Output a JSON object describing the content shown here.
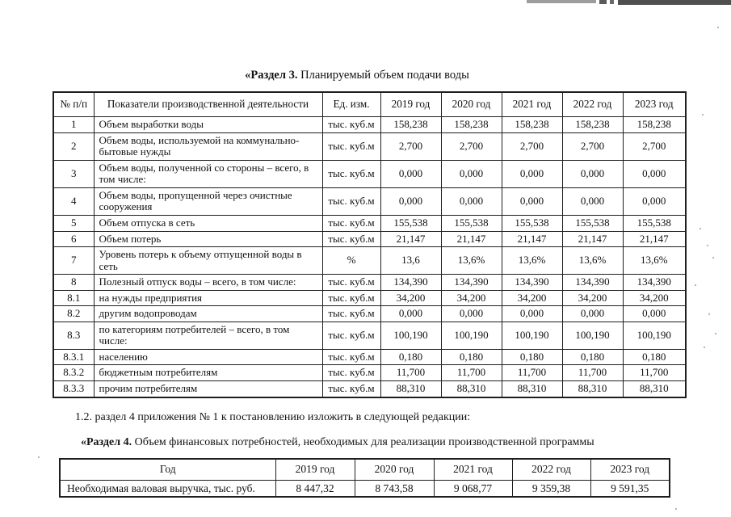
{
  "section3": {
    "title_bold": "«Раздел 3.",
    "title_rest": " Планируемый объем подачи воды"
  },
  "table1": {
    "headers": [
      "№ п/п",
      "Показатели производственной деятельности",
      "Ед. изм.",
      "2019 год",
      "2020 год",
      "2021 год",
      "2022 год",
      "2023 год"
    ],
    "rows": [
      {
        "num": "1",
        "indicator": "Объем выработки воды",
        "unit": "тыс. куб.м",
        "values": [
          "158,238",
          "158,238",
          "158,238",
          "158,238",
          "158,238"
        ]
      },
      {
        "num": "2",
        "indicator": "Объем воды, используемой на коммунально-бытовые нужды",
        "unit": "тыс. куб.м",
        "values": [
          "2,700",
          "2,700",
          "2,700",
          "2,700",
          "2,700"
        ]
      },
      {
        "num": "3",
        "indicator": "Объем воды, полученной со стороны – всего, в том числе:",
        "unit": "тыс. куб.м",
        "values": [
          "0,000",
          "0,000",
          "0,000",
          "0,000",
          "0,000"
        ]
      },
      {
        "num": "4",
        "indicator": "Объем воды, пропущенной через очистные сооружения",
        "unit": "тыс. куб.м",
        "values": [
          "0,000",
          "0,000",
          "0,000",
          "0,000",
          "0,000"
        ]
      },
      {
        "num": "5",
        "indicator": "Объем отпуска в сеть",
        "unit": "тыс. куб.м",
        "values": [
          "155,538",
          "155,538",
          "155,538",
          "155,538",
          "155,538"
        ]
      },
      {
        "num": "6",
        "indicator": "Объем потерь",
        "unit": "тыс. куб.м",
        "values": [
          "21,147",
          "21,147",
          "21,147",
          "21,147",
          "21,147"
        ]
      },
      {
        "num": "7",
        "indicator": "Уровень потерь к объему отпущенной воды в сеть",
        "unit": "%",
        "values": [
          "13,6",
          "13,6%",
          "13,6%",
          "13,6%",
          "13,6%"
        ]
      },
      {
        "num": "8",
        "indicator": "Полезный отпуск воды – всего, в том числе:",
        "unit": "тыс. куб.м",
        "values": [
          "134,390",
          "134,390",
          "134,390",
          "134,390",
          "134,390"
        ]
      },
      {
        "num": "8.1",
        "indicator": "на нужды предприятия",
        "unit": "тыс. куб.м",
        "values": [
          "34,200",
          "34,200",
          "34,200",
          "34,200",
          "34,200"
        ]
      },
      {
        "num": "8.2",
        "indicator": "другим водопроводам",
        "unit": "тыс. куб.м",
        "values": [
          "0,000",
          "0,000",
          "0,000",
          "0,000",
          "0,000"
        ]
      },
      {
        "num": "8.3",
        "indicator": "по категориям потребителей – всего, в том числе:",
        "unit": "тыс. куб.м",
        "values": [
          "100,190",
          "100,190",
          "100,190",
          "100,190",
          "100,190"
        ]
      },
      {
        "num": "8.3.1",
        "indicator": "населению",
        "unit": "тыс. куб.м",
        "values": [
          "0,180",
          "0,180",
          "0,180",
          "0,180",
          "0,180"
        ]
      },
      {
        "num": "8.3.2",
        "indicator": "бюджетным потребителям",
        "unit": "тыс. куб.м",
        "values": [
          "11,700",
          "11,700",
          "11,700",
          "11,700",
          "11,700"
        ]
      },
      {
        "num": "8.3.3",
        "indicator": "прочим потребителям",
        "unit": "тыс. куб.м",
        "values": [
          "88,310",
          "88,310",
          "88,310",
          "88,310",
          "88,310"
        ]
      }
    ]
  },
  "paragraph_12": "1.2. раздел 4 приложения № 1 к постановлению изложить в следующей редакции:",
  "section4": {
    "title_bold": "«Раздел 4.",
    "title_rest": " Объем финансовых потребностей, необходимых для реализации производственной программы"
  },
  "table2": {
    "headers": [
      "Год",
      "2019 год",
      "2020 год",
      "2021 год",
      "2022 год",
      "2023 год"
    ],
    "rows": [
      {
        "label": "Необходимая валовая выручка, тыс. руб.",
        "values": [
          "8 447,32",
          "8 743,58",
          "9 068,77",
          "9 359,38",
          "9 591,35"
        ]
      }
    ]
  },
  "colors": {
    "ink": "#121212",
    "scan_band_dark": "#4f4f4f",
    "scan_band_light": "#9d9d9d"
  }
}
